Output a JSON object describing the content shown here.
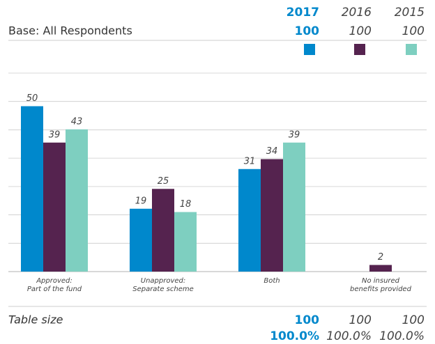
{
  "header": {
    "base_label": "Base: All Respondents",
    "base": [
      100,
      100,
      100
    ]
  },
  "chart_data": {
    "type": "bar",
    "categories": [
      [
        "Approved:",
        "Part of the fund"
      ],
      [
        "Unapproved:",
        "Separate scheme"
      ],
      [
        "Both"
      ],
      [
        "No insured",
        "benefits provided"
      ]
    ],
    "series": [
      {
        "name": "2017",
        "color": "#0088cc",
        "values": [
          50,
          19,
          31,
          null
        ]
      },
      {
        "name": "2016",
        "color": "#55234f",
        "values": [
          39,
          25,
          34,
          2
        ]
      },
      {
        "name": "2015",
        "color": "#7ecfc0",
        "values": [
          43,
          18,
          39,
          null
        ]
      }
    ],
    "ylim": [
      0,
      60
    ],
    "yticks": [
      0,
      8.57,
      17.14,
      25.71,
      34.29,
      42.86,
      51.43,
      60
    ],
    "grid": true
  },
  "footer": {
    "label": "Table size",
    "sizes": [
      100,
      100,
      100
    ],
    "percents": [
      "100.0%",
      "100.0%",
      "100.0%"
    ]
  }
}
